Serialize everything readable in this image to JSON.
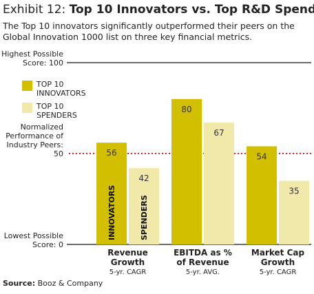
{
  "chart_data": {
    "type": "bar",
    "title_prefix": "Exhibit 12:",
    "title": "Top 10 Innovators vs. Top R&D Spenders",
    "subtitle": "The Top 10 innovators significantly outperformed their peers on the Global Innovation 1000 list on three key financial metrics.",
    "categories": [
      "Revenue Growth",
      "EBITDA as % of Revenue",
      "Market Cap Growth"
    ],
    "category_notes": [
      "5-yr. CAGR",
      "5-yr. AVG.",
      "5-yr. CAGR"
    ],
    "series": [
      {
        "name": "TOP 10 INNOVATORS",
        "color": "#d2c000",
        "values": [
          56,
          80,
          54
        ]
      },
      {
        "name": "TOP 10 SPENDERS",
        "color": "#f1e9a9",
        "values": [
          42,
          67,
          35
        ]
      }
    ],
    "annotations": [
      "INNOVATORS",
      "SPENDERS"
    ],
    "ylim": [
      0,
      100
    ],
    "yticks": [
      {
        "value": 100,
        "label": "Highest Possible\nScore: 100"
      },
      {
        "value": 50,
        "label": "Normalized\nPerformance of\nIndustry Peers: 50"
      },
      {
        "value": 0,
        "label": "Lowest Possible\nScore: 0"
      }
    ],
    "reference_value": 50,
    "source_label": "Source:",
    "source": "Booz & Company"
  }
}
